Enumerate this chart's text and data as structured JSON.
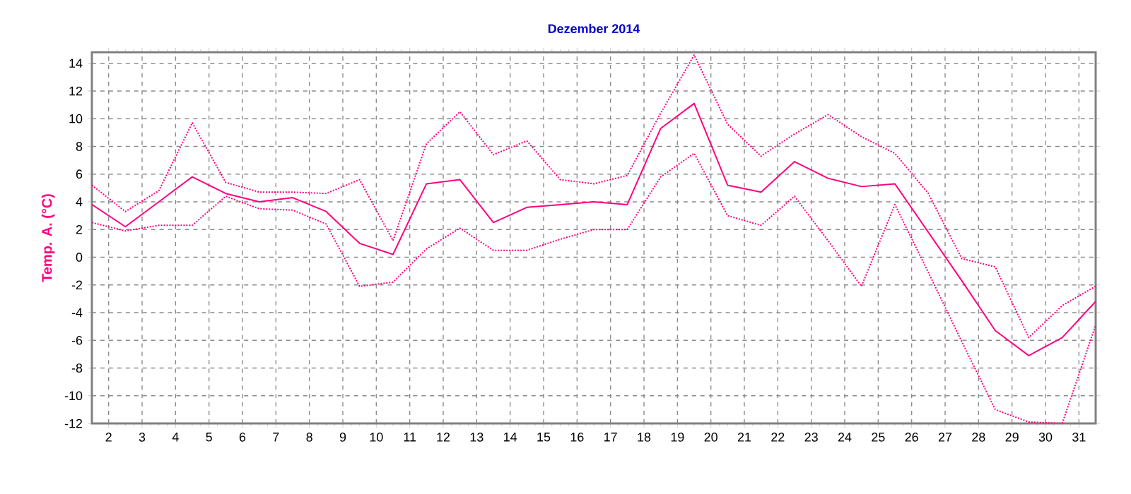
{
  "chart_data": {
    "type": "line",
    "title": "Dezember 2014",
    "ylabel": "Temp. A. (°C)",
    "x": [
      1.5,
      2.5,
      3.5,
      4.5,
      5.5,
      6.5,
      7.5,
      8.5,
      9.5,
      10.5,
      11.5,
      12.5,
      13.5,
      14.5,
      15.5,
      16.5,
      17.5,
      18.5,
      19.5,
      20.5,
      21.5,
      22.5,
      23.5,
      24.5,
      25.5,
      26.5,
      27.5,
      28.5,
      29.5,
      30.5,
      31.5
    ],
    "series": [
      {
        "color": "#ff0080",
        "line_style": "solid",
        "values": [
          3.8,
          2.2,
          4.0,
          5.8,
          4.6,
          4.0,
          4.3,
          3.3,
          1.0,
          0.2,
          5.3,
          5.6,
          2.5,
          3.6,
          3.8,
          4.0,
          3.8,
          9.3,
          11.1,
          5.2,
          4.7,
          6.9,
          5.7,
          5.1,
          5.3,
          1.8,
          -1.7,
          -5.3,
          -7.1,
          -5.8,
          -3.2
        ]
      },
      {
        "color": "#ff0080",
        "line_style": "dotted",
        "values": [
          5.2,
          3.3,
          4.8,
          9.7,
          5.4,
          4.7,
          4.7,
          4.6,
          5.6,
          1.2,
          8.2,
          10.5,
          7.4,
          8.4,
          5.6,
          5.3,
          5.9,
          10.4,
          14.6,
          9.6,
          7.3,
          8.9,
          10.3,
          8.7,
          7.5,
          4.6,
          -0.1,
          -0.7,
          -5.8,
          -3.5,
          -2.1
        ]
      },
      {
        "color": "#ff0080",
        "line_style": "dotted",
        "values": [
          2.5,
          1.9,
          2.3,
          2.3,
          4.4,
          3.5,
          3.4,
          2.4,
          -2.1,
          -1.8,
          0.6,
          2.1,
          0.5,
          0.5,
          1.3,
          2.0,
          2.0,
          5.8,
          7.5,
          3.0,
          2.3,
          4.4,
          1.2,
          -2.1,
          3.8,
          -1.1,
          -6.1,
          -11.0,
          -11.9,
          -12.0,
          -4.9
        ]
      }
    ],
    "xlim": [
      1.5,
      31.5
    ],
    "ylim": [
      -12,
      14.8
    ],
    "xticks": [
      2,
      3,
      4,
      5,
      6,
      7,
      8,
      9,
      10,
      11,
      12,
      13,
      14,
      15,
      16,
      17,
      18,
      19,
      20,
      21,
      22,
      23,
      24,
      25,
      26,
      27,
      28,
      29,
      30,
      31
    ],
    "yticks": [
      -12,
      -10,
      -8,
      -6,
      -4,
      -2,
      0,
      2,
      4,
      6,
      8,
      10,
      12,
      14
    ],
    "grid": true,
    "marker": "none"
  }
}
